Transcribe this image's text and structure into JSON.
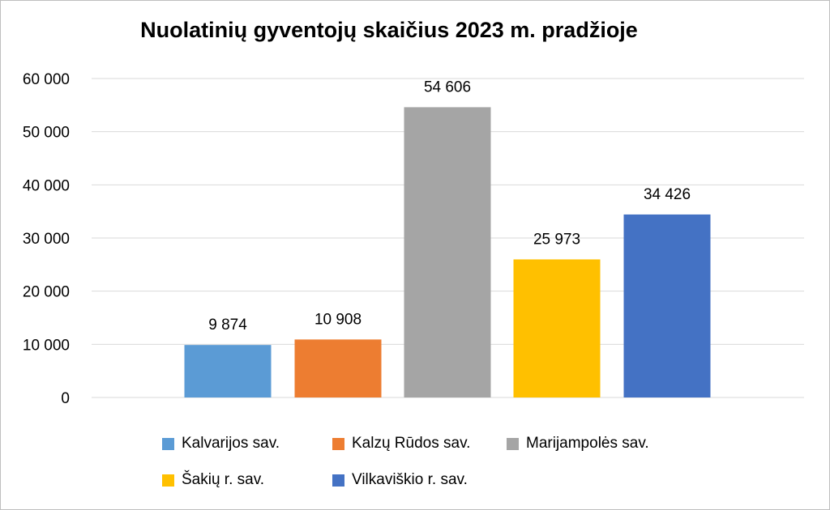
{
  "chart_data": {
    "type": "bar",
    "title": "Nuolatinių gyventojų skaičius 2023 m. pradžioje",
    "categories": [
      "Kalvarijos sav.",
      "Kalzų Rūdos sav.",
      "Marijampolės sav.",
      "Šakių r. sav.",
      "Vilkaviškio r. sav."
    ],
    "values": [
      9874,
      10908,
      54606,
      25973,
      34426
    ],
    "value_labels": [
      "9 874",
      "10 908",
      "54 606",
      "25 973",
      "34 426"
    ],
    "colors": [
      "#5B9BD5",
      "#ED7D31",
      "#A5A5A5",
      "#FFC000",
      "#4472C4"
    ],
    "ylim": [
      0,
      60000
    ],
    "yticks": [
      0,
      10000,
      20000,
      30000,
      40000,
      50000,
      60000
    ],
    "ytick_labels": [
      "0",
      "10 000",
      "20 000",
      "30 000",
      "40 000",
      "50 000",
      "60 000"
    ],
    "grid": true,
    "legend_position": "bottom",
    "xlabel": "",
    "ylabel": ""
  }
}
